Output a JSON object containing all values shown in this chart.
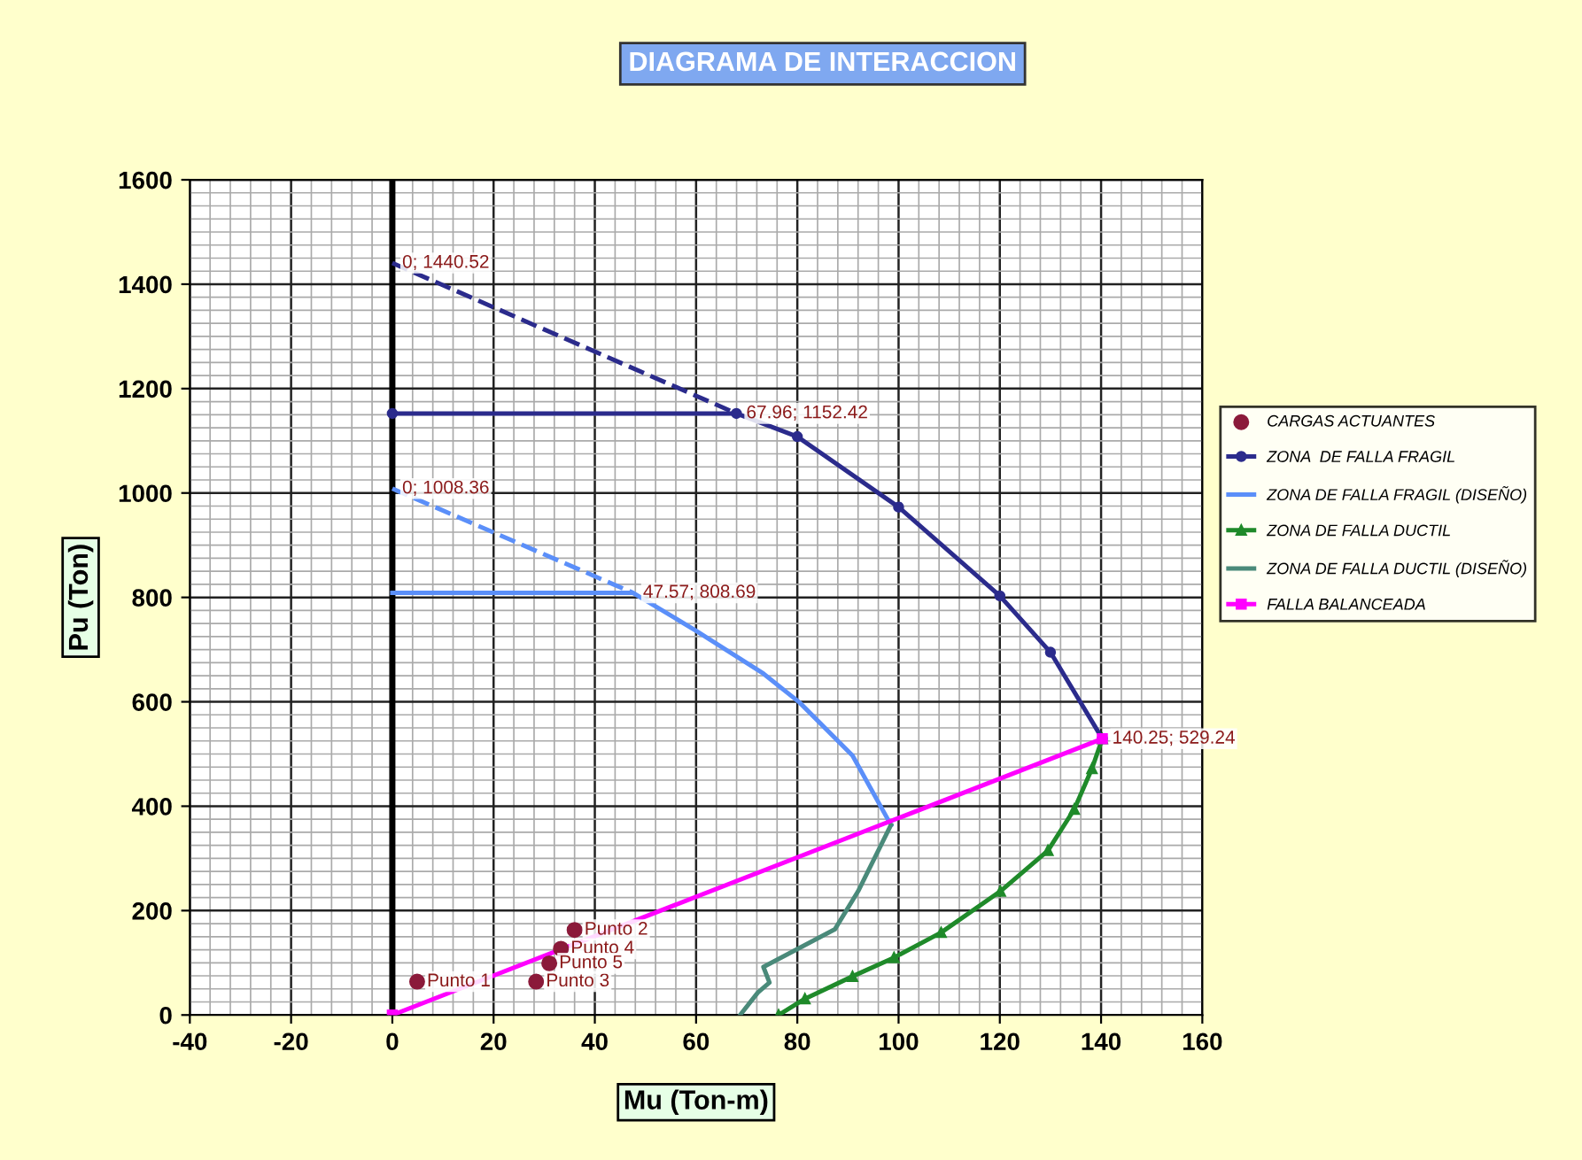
{
  "chart_data": {
    "type": "line",
    "title": "DIAGRAMA DE INTERACCION",
    "xlabel": "Mu (Ton-m)",
    "ylabel": "Pu (Ton)",
    "xlim": [
      -40,
      160
    ],
    "xticks": [
      -40,
      -20,
      0,
      20,
      40,
      60,
      80,
      100,
      120,
      140,
      160
    ],
    "ylim": [
      0,
      1600
    ],
    "yticks": [
      0,
      200,
      400,
      600,
      800,
      1000,
      1200,
      1400,
      1600
    ],
    "grid": true,
    "legend": "right",
    "series": [
      {
        "name": "CARGAS ACTUANTES",
        "type": "scatter",
        "color": "#8b1a3a",
        "marker": "circle",
        "x": [
          4.9,
          36.0,
          28.4,
          33.3,
          31.0
        ],
        "values": [
          64,
          163,
          64,
          127,
          99
        ]
      },
      {
        "name": "ZONA  DE FALLA FRAGIL",
        "color": "#2b2b8c",
        "marker": "circle",
        "line_style": "solid",
        "x": [
          0,
          67.96,
          80,
          100,
          120,
          130,
          140.25
        ],
        "values": [
          1152.42,
          1152.42,
          1108,
          973,
          803,
          695,
          529.24
        ]
      },
      {
        "name": "ZONA DE FALLA FRAGIL (DISEÑO)",
        "color": "#5b8ff9",
        "marker": "none",
        "line_style": "solid",
        "x": [
          0,
          47.57,
          60,
          73.3,
          80.4,
          90.9,
          98.5
        ],
        "values": [
          808.69,
          808.69,
          736,
          654,
          599,
          497,
          364
        ]
      },
      {
        "name": "ZONA DE FALLA DUCTIL",
        "color": "#1f8a2a",
        "marker": "triangle",
        "line_style": "solid",
        "x": [
          140.25,
          138.2,
          134.7,
          129.5,
          120.1,
          108.4,
          99.1,
          90.9,
          81.5,
          76.3
        ],
        "values": [
          529.24,
          472,
          394,
          315,
          237,
          158,
          110,
          74,
          31,
          0
        ]
      },
      {
        "name": "ZONA DE FALLA DUCTIL (DISEÑO)",
        "color": "#4a8a7a",
        "marker": "none",
        "line_style": "solid",
        "x": [
          98.5,
          92,
          87.4,
          73.3,
          74.5,
          72.2,
          68.7
        ],
        "values": [
          364,
          237,
          164,
          92,
          62,
          43,
          0
        ]
      },
      {
        "name": "FALLA BALANCEADA",
        "color": "#ff00ff",
        "marker": "square",
        "line_style": "solid",
        "x": [
          0,
          140.25
        ],
        "values": [
          0,
          529.24
        ]
      },
      {
        "color": "#2b2b8c",
        "marker": "none",
        "line_style": "dashed",
        "x": [
          0,
          67.96
        ],
        "values": [
          1440.52,
          1152.42
        ]
      },
      {
        "color": "#5b8ff9",
        "marker": "none",
        "line_style": "dashed",
        "x": [
          0,
          47.57
        ],
        "values": [
          1008.36,
          808.69
        ]
      }
    ],
    "annotations": [
      {
        "text": "0; 1440.52",
        "x": 0,
        "y": 1440.52
      },
      {
        "text": "67.96; 1152.42",
        "x": 67.96,
        "y": 1152.42
      },
      {
        "text": "0; 1008.36",
        "x": 0,
        "y": 1008.36
      },
      {
        "text": "47.57; 808.69",
        "x": 47.57,
        "y": 808.69
      },
      {
        "text": "140.25; 529.24",
        "x": 140.25,
        "y": 529.24
      },
      {
        "text": "Punto 1",
        "x": 4.9,
        "y": 64
      },
      {
        "text": "Punto 2",
        "x": 36.0,
        "y": 163
      },
      {
        "text": "Punto 3",
        "x": 28.4,
        "y": 64
      },
      {
        "text": "Punto 4",
        "x": 33.3,
        "y": 127
      },
      {
        "text": "Punto 5",
        "x": 31.0,
        "y": 99
      }
    ]
  }
}
